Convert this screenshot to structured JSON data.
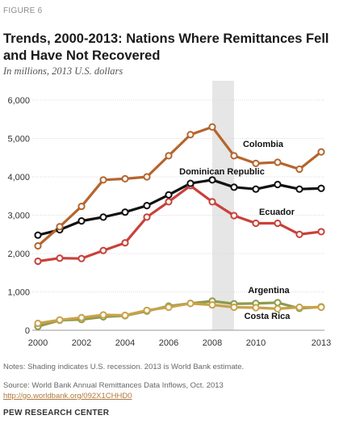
{
  "figure_label": "FIGURE 6",
  "title": "Trends, 2000-2013: Nations Where Remittances Fell and Have Not Recovered",
  "subtitle": "In millions, 2013 U.S. dollars",
  "notes": "Notes: Shading indicates U.S. recession. 2013 is World Bank estimate.",
  "source": "Source: World Bank Annual Remittances Data Inflows, Oct. 2013",
  "link": "http://go.worldbank.org/092X1CHHD0",
  "org": "PEW RESEARCH CENTER",
  "chart_data": {
    "type": "line",
    "title": "Trends, 2000-2013: Nations Where Remittances Fell and Have Not Recovered",
    "ylabel": "In millions, 2013 U.S. dollars",
    "xlabel": "",
    "x": [
      2000,
      2001,
      2002,
      2003,
      2004,
      2005,
      2006,
      2007,
      2008,
      2009,
      2010,
      2011,
      2012,
      2013
    ],
    "xticks": [
      "2000",
      "2002",
      "2004",
      "2006",
      "2008",
      "2010",
      "2013"
    ],
    "xtick_values": [
      2000,
      2002,
      2004,
      2006,
      2008,
      2010,
      2013
    ],
    "yticks": [
      "0",
      "1,000",
      "2,000",
      "3,000",
      "4,000",
      "5,000",
      "6,000"
    ],
    "ylim": [
      0,
      6000
    ],
    "grid": true,
    "shaded_region": [
      2008,
      2009
    ],
    "series": [
      {
        "name": "Colombia",
        "color": "#b5652e",
        "values": [
          2200,
          2700,
          3230,
          3920,
          3950,
          4000,
          4550,
          5100,
          5300,
          4550,
          4350,
          4380,
          4200,
          4650
        ]
      },
      {
        "name": "Dominican Republic",
        "color": "#111111",
        "values": [
          2480,
          2620,
          2850,
          2950,
          3080,
          3250,
          3530,
          3830,
          3920,
          3730,
          3680,
          3800,
          3680,
          3700
        ]
      },
      {
        "name": "Ecuador",
        "color": "#c8413a",
        "values": [
          1800,
          1880,
          1870,
          2080,
          2280,
          2950,
          3350,
          3770,
          3350,
          2990,
          2790,
          2790,
          2500,
          2570
        ]
      },
      {
        "name": "Argentina",
        "color": "#8f9a4a",
        "values": [
          100,
          260,
          280,
          350,
          380,
          500,
          630,
          700,
          760,
          690,
          700,
          720,
          570,
          610
        ]
      },
      {
        "name": "Costa Rica",
        "color": "#c9a24a",
        "values": [
          180,
          270,
          330,
          400,
          390,
          520,
          600,
          700,
          660,
          600,
          590,
          560,
          600,
          600
        ]
      }
    ],
    "labels": [
      {
        "text": "Colombia",
        "series": "Colombia"
      },
      {
        "text": "Dominican Republic",
        "series": "Dominican Republic"
      },
      {
        "text": "Ecuador",
        "series": "Ecuador"
      },
      {
        "text": "Argentina",
        "series": "Argentina"
      },
      {
        "text": "Costa Rica",
        "series": "Costa Rica"
      }
    ]
  }
}
